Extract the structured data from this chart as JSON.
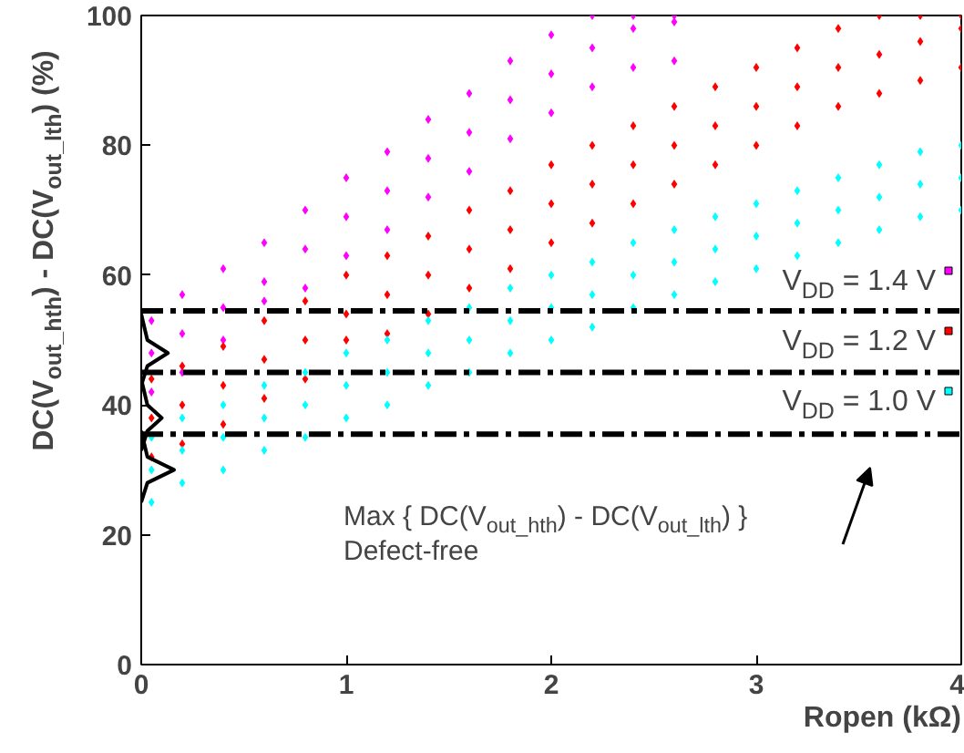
{
  "chart_data": {
    "type": "scatter",
    "xlabel": "Ropen (kΩ)",
    "ylabel": "DC(V$_{out_hth}$) - DC(V$_{out_lth}$) (%)",
    "xlim": [
      0,
      4
    ],
    "xticks": [
      0,
      1,
      2,
      3,
      4
    ],
    "ylim": [
      0,
      100
    ],
    "yticks": [
      0,
      20,
      40,
      60,
      80,
      100
    ],
    "marker": "diamond",
    "legend": "right",
    "series": [
      {
        "name": "V$_{DD}$ = 1.4 V",
        "color": "#ff00ff",
        "x": [
          0.05,
          0.05,
          0.05,
          0.2,
          0.2,
          0.2,
          0.4,
          0.4,
          0.4,
          0.6,
          0.6,
          0.6,
          0.8,
          0.8,
          0.8,
          1.0,
          1.0,
          1.0,
          1.2,
          1.2,
          1.2,
          1.4,
          1.4,
          1.4,
          1.6,
          1.6,
          1.6,
          1.8,
          1.8,
          1.8,
          2.0,
          2.0,
          2.0,
          2.2,
          2.2,
          2.2,
          2.4,
          2.4,
          2.4,
          2.6,
          2.6,
          2.6
        ],
        "values": [
          42,
          48,
          53,
          45,
          51,
          57,
          50,
          55,
          61,
          56,
          59,
          65,
          58,
          64,
          70,
          63,
          69,
          75,
          67,
          73,
          79,
          72,
          78,
          84,
          76,
          82,
          88,
          81,
          87,
          93,
          85,
          91,
          97,
          89,
          95,
          100,
          92,
          98,
          100,
          93,
          99,
          100
        ]
      },
      {
        "name": "V$_{DD}$ = 1.2 V",
        "color": "#ff0000",
        "x": [
          0.05,
          0.05,
          0.05,
          0.2,
          0.2,
          0.2,
          0.4,
          0.4,
          0.4,
          0.6,
          0.6,
          0.6,
          0.8,
          0.8,
          0.8,
          1.0,
          1.0,
          1.0,
          1.2,
          1.2,
          1.2,
          1.4,
          1.4,
          1.4,
          1.6,
          1.6,
          1.6,
          1.8,
          1.8,
          1.8,
          2.0,
          2.0,
          2.0,
          2.2,
          2.2,
          2.2,
          2.4,
          2.4,
          2.4,
          2.6,
          2.6,
          2.6,
          2.8,
          2.8,
          2.8,
          3.0,
          3.0,
          3.0,
          3.2,
          3.2,
          3.2,
          3.4,
          3.4,
          3.4,
          3.6,
          3.6,
          3.6,
          3.8,
          3.8,
          3.8,
          4.0,
          4.0,
          4.0
        ],
        "values": [
          32,
          38,
          44,
          34,
          40,
          46,
          37,
          43,
          49,
          41,
          47,
          53,
          44,
          50,
          56,
          50,
          54,
          60,
          51,
          57,
          63,
          54,
          60,
          66,
          58,
          64,
          70,
          61,
          67,
          73,
          65,
          71,
          77,
          68,
          74,
          80,
          71,
          77,
          83,
          74,
          80,
          86,
          77,
          83,
          89,
          80,
          86,
          92,
          83,
          89,
          95,
          86,
          92,
          98,
          88,
          94,
          100,
          90,
          96,
          100,
          92,
          98,
          100
        ]
      },
      {
        "name": "V$_{DD}$ = 1.0 V",
        "color": "#00ffff",
        "x": [
          0.05,
          0.05,
          0.05,
          0.2,
          0.2,
          0.2,
          0.4,
          0.4,
          0.4,
          0.6,
          0.6,
          0.6,
          0.8,
          0.8,
          0.8,
          1.0,
          1.0,
          1.0,
          1.2,
          1.2,
          1.2,
          1.4,
          1.4,
          1.4,
          1.6,
          1.6,
          1.6,
          1.8,
          1.8,
          1.8,
          2.0,
          2.0,
          2.0,
          2.2,
          2.2,
          2.2,
          2.4,
          2.4,
          2.4,
          2.6,
          2.6,
          2.6,
          2.8,
          2.8,
          2.8,
          3.0,
          3.0,
          3.0,
          3.2,
          3.2,
          3.2,
          3.4,
          3.4,
          3.4,
          3.6,
          3.6,
          3.6,
          3.8,
          3.8,
          3.8,
          4.0,
          4.0,
          4.0
        ],
        "values": [
          25,
          30,
          35,
          28,
          33,
          38,
          30,
          35,
          40,
          33,
          38,
          43,
          35,
          40,
          45,
          38,
          43,
          48,
          40,
          45,
          50,
          43,
          48,
          53,
          45,
          50,
          55,
          48,
          53,
          58,
          50,
          55,
          60,
          52,
          57,
          62,
          55,
          60,
          65,
          57,
          62,
          67,
          59,
          64,
          69,
          61,
          66,
          71,
          63,
          68,
          73,
          65,
          70,
          75,
          67,
          72,
          77,
          69,
          74,
          79,
          70,
          75,
          80
        ]
      },
      {
        "type": "line",
        "marker": "none",
        "color": "#000000",
        "x": [
          0,
          0.03,
          0.13,
          0.03,
          0
        ],
        "values": [
          43,
          46,
          48,
          50,
          54
        ]
      },
      {
        "type": "line",
        "marker": "none",
        "color": "#000000",
        "x": [
          0,
          0.03,
          0.1,
          0.03,
          0
        ],
        "values": [
          33,
          36,
          38,
          40,
          44
        ]
      },
      {
        "type": "line",
        "marker": "none",
        "color": "#000000",
        "x": [
          0,
          0.03,
          0.16,
          0.03,
          0
        ],
        "values": [
          25,
          28,
          30,
          32,
          36
        ]
      }
    ],
    "ref_lines": [
      {
        "axis": "y",
        "value": 54.5,
        "color": "#000000",
        "line_style": "dashed"
      },
      {
        "axis": "y",
        "value": 45,
        "color": "#000000",
        "line_style": "dashed"
      },
      {
        "axis": "y",
        "value": 35.5,
        "color": "#000000",
        "line_style": "dashed"
      }
    ],
    "annotations": [
      "Max { DC(V$_{out_hth}$) - DC(V$_{out_lth}$) }",
      "Defect-free"
    ]
  }
}
